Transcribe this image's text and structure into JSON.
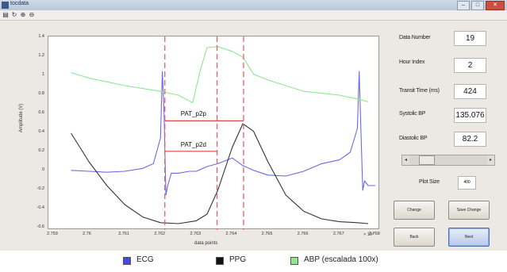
{
  "window": {
    "title": "tocdata",
    "buttons": [
      "–",
      "□",
      "✕"
    ]
  },
  "toolbar": {
    "icons": [
      "open-icon",
      "rotate-icon",
      "zoom-in-icon",
      "zoom-out-icon"
    ]
  },
  "colors": {
    "ecg": "#6a6ae6",
    "ppg": "#333333",
    "abp": "#8ee88e",
    "marker": "#e8606a",
    "pat": "#d84a4a"
  },
  "chart_data": {
    "type": "line",
    "xlabel": "data points",
    "ylabel": "Amplitude (V)",
    "x_exponent": "× 10⁴",
    "xlim": [
      2.759,
      2.768
    ],
    "ylim": [
      -0.6,
      1.4
    ],
    "x_ticks": [
      "2.759",
      "2.76",
      "2.761",
      "2.762",
      "2.763",
      "2.764",
      "2.765",
      "2.766",
      "2.767",
      "2.768"
    ],
    "y_ticks": [
      "-0.6",
      "-0.4",
      "-0.2",
      "0",
      "0.2",
      "0.4",
      "0.6",
      "0.8",
      "1",
      "1.2",
      "1.4"
    ],
    "markers": [
      2.76212,
      2.76358,
      2.76432
    ],
    "annotations": [
      {
        "label": "PAT_p2p",
        "x0": 2.76212,
        "x1": 2.76432,
        "y": 0.53
      },
      {
        "label": "PAT_p2d",
        "x0": 2.76212,
        "x1": 2.76358,
        "y": 0.21
      }
    ],
    "series": [
      {
        "name": "ECG",
        "color": "#6a6ae6",
        "x": [
          2.7595,
          2.76,
          2.7605,
          2.761,
          2.7615,
          2.7618,
          2.762,
          2.76205,
          2.7621,
          2.76215,
          2.7622,
          2.7623,
          2.7625,
          2.7628,
          2.763,
          2.7633,
          2.7636,
          2.764,
          2.7643,
          2.7646,
          2.765,
          2.7655,
          2.766,
          2.7665,
          2.767,
          2.7673,
          2.7675,
          2.76755,
          2.7676,
          2.76765,
          2.7677,
          2.7678,
          2.768
        ],
        "y": [
          0.01,
          0.0,
          -0.01,
          0.0,
          0.03,
          0.08,
          0.35,
          1.05,
          0.6,
          -0.25,
          -0.15,
          -0.02,
          -0.02,
          0.0,
          0.0,
          0.05,
          0.08,
          0.14,
          0.06,
          0.01,
          -0.04,
          -0.05,
          0.0,
          0.08,
          0.12,
          0.2,
          0.45,
          1.05,
          0.4,
          -0.2,
          -0.1,
          -0.15,
          -0.15
        ]
      },
      {
        "name": "PPG",
        "color": "#333333",
        "x": [
          2.7595,
          2.76,
          2.7605,
          2.761,
          2.7615,
          2.762,
          2.7625,
          2.763,
          2.7633,
          2.7636,
          2.764,
          2.7643,
          2.7646,
          2.765,
          2.7655,
          2.766,
          2.7665,
          2.767,
          2.7675,
          2.7678
        ],
        "y": [
          0.4,
          0.1,
          -0.15,
          -0.35,
          -0.48,
          -0.54,
          -0.55,
          -0.52,
          -0.45,
          -0.2,
          0.25,
          0.5,
          0.42,
          0.1,
          -0.25,
          -0.42,
          -0.5,
          -0.53,
          -0.54,
          -0.55
        ]
      },
      {
        "name": "ABP (escalada 100x)",
        "color": "#8ee88e",
        "x": [
          2.7595,
          2.75955,
          2.76,
          2.7605,
          2.761,
          2.7615,
          2.762,
          2.7625,
          2.7629,
          2.7631,
          2.7633,
          2.7636,
          2.764,
          2.7643,
          2.7646,
          2.765,
          2.7655,
          2.766,
          2.7665,
          2.767,
          2.7675,
          2.7678
        ],
        "y": [
          1.04,
          1.03,
          0.98,
          0.94,
          0.9,
          0.87,
          0.84,
          0.8,
          0.72,
          1.05,
          1.3,
          1.31,
          1.26,
          1.2,
          1.02,
          0.96,
          0.9,
          0.84,
          0.82,
          0.8,
          0.76,
          0.73
        ]
      }
    ]
  },
  "panel": {
    "data_number": {
      "label": "Data Number",
      "value": "19"
    },
    "hour_index": {
      "label": "Hour Index",
      "value": "2"
    },
    "transit_time": {
      "label": "Transit Time (ms)",
      "value": "424"
    },
    "systolic": {
      "label": "Systolic BP",
      "value": "135.076"
    },
    "diastolic": {
      "label": "Diastolic BP",
      "value": "82.2"
    },
    "slider": {
      "left_arrow": "◂",
      "right_arrow": "▸",
      "position": 0.15
    },
    "plot_size": {
      "label": "Plot Size",
      "value": "400"
    },
    "buttons": {
      "change": "Change",
      "save_change": "Save Change",
      "back": "Back",
      "next": "Next"
    }
  },
  "legend": [
    {
      "name": "ECG",
      "color": "#4a4ad8"
    },
    {
      "name": "PPG",
      "color": "#111111"
    },
    {
      "name": "ABP (escalada 100x)",
      "color": "#8ee88e"
    }
  ]
}
